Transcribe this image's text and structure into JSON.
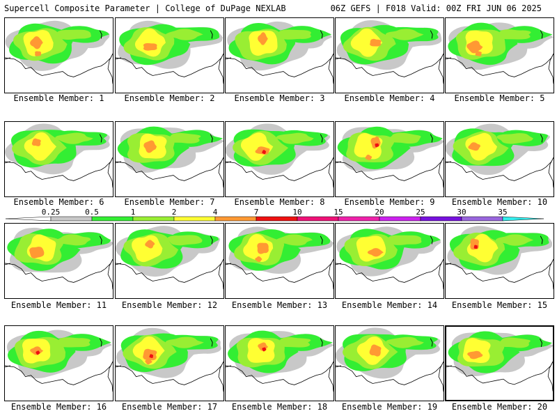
{
  "header": {
    "left": "Supercell Composite Parameter | College of DuPage NEXLAB",
    "right": "06Z GEFS | F018 Valid: 00Z FRI JUN 06 2025"
  },
  "members": [
    {
      "label": "Ensemble Member: 1"
    },
    {
      "label": "Ensemble Member: 2"
    },
    {
      "label": "Ensemble Member: 3"
    },
    {
      "label": "Ensemble Member: 4"
    },
    {
      "label": "Ensemble Member: 5"
    },
    {
      "label": "Ensemble Member: 6"
    },
    {
      "label": "Ensemble Member: 7"
    },
    {
      "label": "Ensemble Member: 8"
    },
    {
      "label": "Ensemble Member: 9"
    },
    {
      "label": "Ensemble Member: 10"
    },
    {
      "label": "Ensemble Member: 11"
    },
    {
      "label": "Ensemble Member: 12"
    },
    {
      "label": "Ensemble Member: 13"
    },
    {
      "label": "Ensemble Member: 14"
    },
    {
      "label": "Ensemble Member: 15"
    },
    {
      "label": "Ensemble Member: 16"
    },
    {
      "label": "Ensemble Member: 17"
    },
    {
      "label": "Ensemble Member: 18"
    },
    {
      "label": "Ensemble Member: 19"
    },
    {
      "label": "Ensemble Member: 20"
    }
  ],
  "selected_member": 20,
  "colorbar": {
    "ticks": [
      "0.25",
      "0.5",
      "1",
      "2",
      "4",
      "7",
      "10",
      "15",
      "20",
      "25",
      "30",
      "35"
    ],
    "colors": [
      "#ffffff",
      "#c8c8c8",
      "#33ee33",
      "#99ee33",
      "#ffff33",
      "#ff9933",
      "#ee1111",
      "#ee1177",
      "#ee22aa",
      "#cc22ee",
      "#7711dd",
      "#9966dd",
      "#33eeee"
    ]
  }
}
